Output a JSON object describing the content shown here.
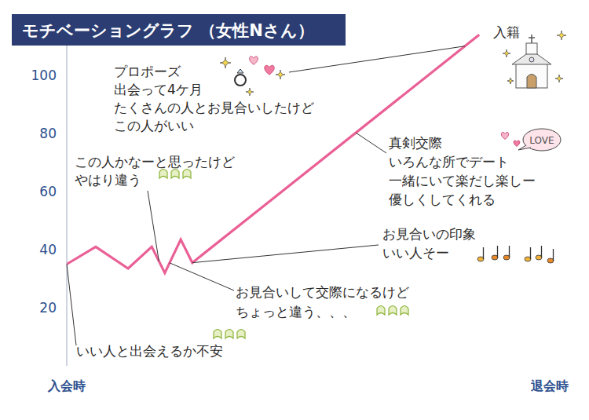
{
  "chart_data": {
    "type": "line",
    "title": "モチベーショングラフ （女性Nさん）",
    "x": [
      0,
      6,
      12.7,
      17.6,
      20.3,
      23.6,
      26,
      85.4
    ],
    "values": [
      35,
      41,
      33.5,
      41,
      32,
      43.5,
      35.5,
      114
    ],
    "color": "#ea6096",
    "xlim": [
      0,
      100
    ],
    "xticks": [
      {
        "value": 0,
        "label": "入会時"
      },
      {
        "value": 100,
        "label": "退会時"
      }
    ],
    "ylim": [
      0,
      115
    ],
    "yticks": [
      20,
      40,
      60,
      80,
      100
    ],
    "grid": false,
    "annotations": [
      {
        "lines": [
          "プロポーズ",
          "出会って4ケ月",
          "たくさんの人とお見合いしたけど",
          "この人がいい"
        ]
      },
      {
        "lines": [
          "入籍"
        ]
      },
      {
        "lines": [
          "真剣交際",
          "いろんな所でデート",
          "一緒にいて楽だし楽しー",
          "優しくしてくれる"
        ]
      },
      {
        "lines": [
          "LOVE"
        ]
      },
      {
        "lines": [
          "この人かなーと思ったけど",
          "やはり違う"
        ]
      },
      {
        "lines": [
          "お見合いの印象",
          "いい人そー"
        ]
      },
      {
        "lines": [
          "お見合いして交際になるけど",
          "ちょっと違う、、、"
        ]
      },
      {
        "lines": [
          "いい人と出会えるか不安"
        ]
      }
    ]
  }
}
